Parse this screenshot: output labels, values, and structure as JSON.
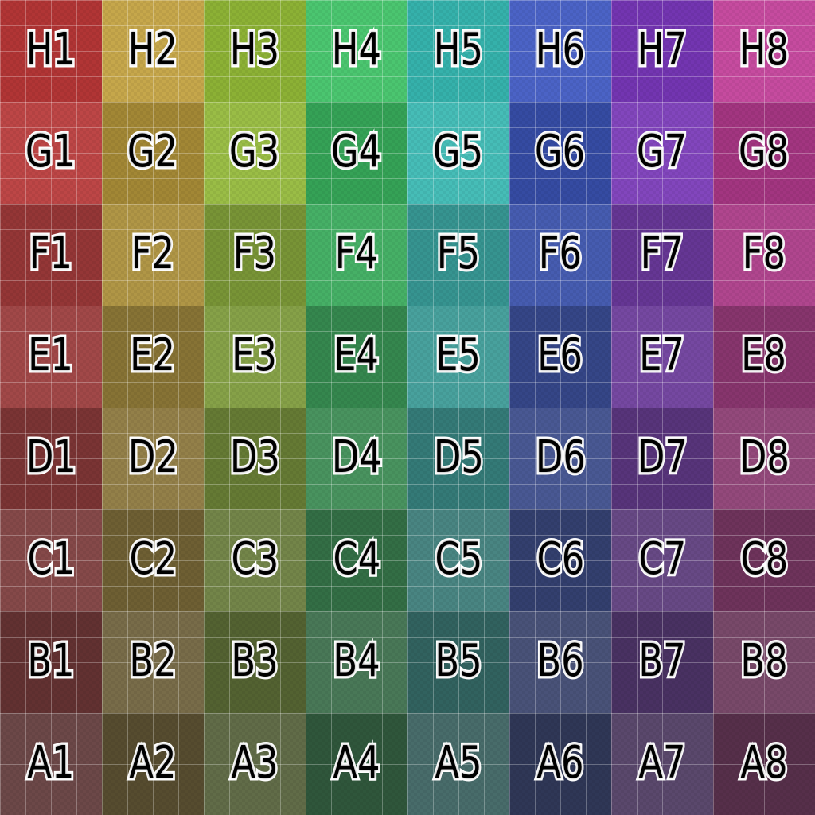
{
  "style": {
    "label_text_color": "#000000",
    "label_outline_color": "#ffffff",
    "grid_line_color": "rgba(255,255,255,0.28)",
    "checker_shade_color": "rgba(0,0,0,0.05)"
  },
  "grid": {
    "columns": 8,
    "rows_count": 8,
    "row_order_top_to_bottom": [
      "H",
      "G",
      "F",
      "E",
      "D",
      "C",
      "B",
      "A"
    ],
    "rows": [
      {
        "id": "H",
        "cells": [
          {
            "label": "H1",
            "color": "hsl(0, 54%, 45%)"
          },
          {
            "label": "H2",
            "color": "hsl(45, 52%, 53.5%)"
          },
          {
            "label": "H3",
            "color": "hsl(78, 54%, 45%)"
          },
          {
            "label": "H4",
            "color": "hsl(138, 52%, 53.5%)"
          },
          {
            "label": "H5",
            "color": "hsl(177, 54%, 45%)"
          },
          {
            "label": "H6",
            "color": "hsl(228, 52%, 53.5%)"
          },
          {
            "label": "H7",
            "color": "hsl(270, 54%, 45%)"
          },
          {
            "label": "H8",
            "color": "hsl(319, 52%, 53.5%)"
          }
        ]
      },
      {
        "id": "G",
        "cells": [
          {
            "label": "G1",
            "color": "hsl(0, 47.4%, 50.9%)"
          },
          {
            "label": "G2",
            "color": "hsl(45, 50.5%, 42.3%)"
          },
          {
            "label": "G3",
            "color": "hsl(78, 47.4%, 50.9%)"
          },
          {
            "label": "G4",
            "color": "hsl(138, 50.5%, 42.3%)"
          },
          {
            "label": "G5",
            "color": "hsl(177, 47.4%, 50.9%)"
          },
          {
            "label": "G6",
            "color": "hsl(228, 50.5%, 42.3%)"
          },
          {
            "label": "G7",
            "color": "hsl(270, 47.4%, 50.9%)"
          },
          {
            "label": "G8",
            "color": "hsl(319, 50.5%, 42.3%)"
          }
        ]
      },
      {
        "id": "F",
        "cells": [
          {
            "label": "F1",
            "color": "hsl(0, 47%, 39.6%)"
          },
          {
            "label": "F2",
            "color": "hsl(45, 42.8%, 48.3%)"
          },
          {
            "label": "F3",
            "color": "hsl(78, 47%, 39.6%)"
          },
          {
            "label": "F4",
            "color": "hsl(138, 42.8%, 48.3%)"
          },
          {
            "label": "F5",
            "color": "hsl(177, 47%, 39.6%)"
          },
          {
            "label": "F6",
            "color": "hsl(228, 42.8%, 48.3%)"
          },
          {
            "label": "F7",
            "color": "hsl(270, 47%, 39.6%)"
          },
          {
            "label": "F8",
            "color": "hsl(319, 42.8%, 48.3%)"
          }
        ]
      },
      {
        "id": "E",
        "cells": [
          {
            "label": "E1",
            "color": "hsl(0, 38.2%, 45.7%)"
          },
          {
            "label": "E2",
            "color": "hsl(45, 43.5%, 36.9%)"
          },
          {
            "label": "E3",
            "color": "hsl(78, 38.2%, 45.7%)"
          },
          {
            "label": "E4",
            "color": "hsl(138, 43.5%, 36.9%)"
          },
          {
            "label": "E5",
            "color": "hsl(177, 38.2%, 45.7%)"
          },
          {
            "label": "E6",
            "color": "hsl(228, 43.5%, 36.9%)"
          },
          {
            "label": "E7",
            "color": "hsl(270, 38.2%, 45.7%)"
          },
          {
            "label": "E8",
            "color": "hsl(319, 43.5%, 36.9%)"
          }
        ]
      },
      {
        "id": "D",
        "cells": [
          {
            "label": "D1",
            "color": "hsl(0, 40%, 34.2%)"
          },
          {
            "label": "D2",
            "color": "hsl(45, 33.6%, 43.1%)"
          },
          {
            "label": "D3",
            "color": "hsl(78, 40%, 34.2%)"
          },
          {
            "label": "D4",
            "color": "hsl(138, 33.6%, 43.1%)"
          },
          {
            "label": "D5",
            "color": "hsl(177, 40%, 34.2%)"
          },
          {
            "label": "D6",
            "color": "hsl(228, 33.6%, 43.1%)"
          },
          {
            "label": "D7",
            "color": "hsl(270, 40%, 34.2%)"
          },
          {
            "label": "D8",
            "color": "hsl(319, 33.6%, 43.1%)"
          }
        ]
      },
      {
        "id": "C",
        "cells": [
          {
            "label": "C1",
            "color": "hsl(0, 29%, 40.5%)"
          },
          {
            "label": "C2",
            "color": "hsl(45, 36.5%, 31.5%)"
          },
          {
            "label": "C3",
            "color": "hsl(78, 29%, 40.5%)"
          },
          {
            "label": "C4",
            "color": "hsl(138, 36.5%, 31.5%)"
          },
          {
            "label": "C5",
            "color": "hsl(177, 29%, 40.5%)"
          },
          {
            "label": "C6",
            "color": "hsl(228, 36.5%, 31.5%)"
          },
          {
            "label": "C7",
            "color": "hsl(270, 29%, 40.5%)"
          },
          {
            "label": "C8",
            "color": "hsl(319, 36.5%, 31.5%)"
          }
        ]
      },
      {
        "id": "B",
        "cells": [
          {
            "label": "B1",
            "color": "hsl(0, 33%, 28.8%)"
          },
          {
            "label": "B2",
            "color": "hsl(45, 24.4%, 37.9%)"
          },
          {
            "label": "B3",
            "color": "hsl(78, 33%, 28.8%)"
          },
          {
            "label": "B4",
            "color": "hsl(138, 24.4%, 37.9%)"
          },
          {
            "label": "B5",
            "color": "hsl(177, 33%, 28.8%)"
          },
          {
            "label": "B6",
            "color": "hsl(228, 24.4%, 37.9%)"
          },
          {
            "label": "B7",
            "color": "hsl(270, 33%, 28.8%)"
          },
          {
            "label": "B8",
            "color": "hsl(319, 24.4%, 37.9%)"
          }
        ]
      },
      {
        "id": "A",
        "cells": [
          {
            "label": "A1",
            "color": "hsl(0, 19.8%, 35.3%)"
          },
          {
            "label": "A2",
            "color": "hsl(45, 29.5%, 26.1%)"
          },
          {
            "label": "A3",
            "color": "hsl(78, 19.8%, 35.3%)"
          },
          {
            "label": "A4",
            "color": "hsl(138, 29.5%, 26.1%)"
          },
          {
            "label": "A5",
            "color": "hsl(177, 19.8%, 35.3%)"
          },
          {
            "label": "A6",
            "color": "hsl(228, 29.5%, 26.1%)"
          },
          {
            "label": "A7",
            "color": "hsl(270, 19.8%, 35.3%)"
          },
          {
            "label": "A8",
            "color": "hsl(319, 29.5%, 26.1%)"
          }
        ]
      }
    ]
  }
}
